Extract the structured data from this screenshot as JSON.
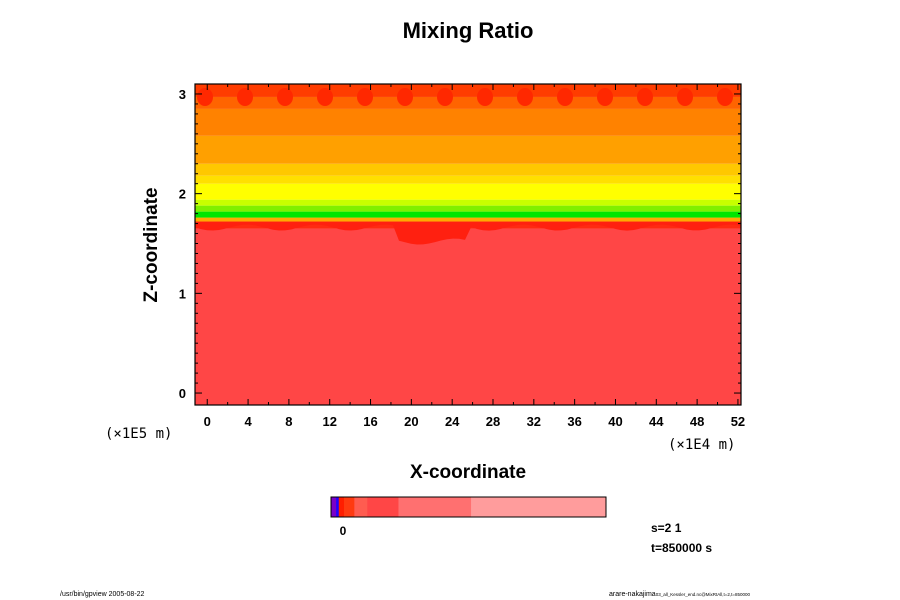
{
  "chart_data": {
    "type": "heatmap",
    "title": "Mixing Ratio",
    "xlabel": "X-coordinate",
    "ylabel": "Z-coordinate",
    "x_unit": "(×1E4 m)",
    "y_unit": "(×1E5 m)",
    "xlim": [
      -1.2,
      52.3
    ],
    "ylim": [
      -0.12,
      3.1
    ],
    "x_ticks": [
      0,
      4,
      8,
      12,
      16,
      20,
      24,
      28,
      32,
      36,
      40,
      44,
      48,
      52
    ],
    "y_ticks": [
      0,
      1,
      2,
      3
    ],
    "bands": [
      {
        "z0": -0.12,
        "z1": 1.65,
        "color": "#ff4646"
      },
      {
        "z0": 1.65,
        "z1": 1.72,
        "color": "#ff2a12"
      },
      {
        "z0": 1.72,
        "z1": 1.76,
        "color": "#ffaa00"
      },
      {
        "z0": 1.76,
        "z1": 1.82,
        "color": "#00e600"
      },
      {
        "z0": 1.82,
        "z1": 1.88,
        "color": "#7ff000"
      },
      {
        "z0": 1.88,
        "z1": 1.94,
        "color": "#c8ff00"
      },
      {
        "z0": 1.94,
        "z1": 2.1,
        "color": "#ffff00"
      },
      {
        "z0": 2.1,
        "z1": 2.18,
        "color": "#ffe000"
      },
      {
        "z0": 2.18,
        "z1": 2.3,
        "color": "#ffc800"
      },
      {
        "z0": 2.3,
        "z1": 2.58,
        "color": "#ffa000"
      },
      {
        "z0": 2.58,
        "z1": 2.85,
        "color": "#ff8200"
      },
      {
        "z0": 2.85,
        "z1": 2.97,
        "color": "#ff6400"
      },
      {
        "z0": 2.97,
        "z1": 3.1,
        "color": "#ff3c00"
      }
    ],
    "colorbar": {
      "tick_label": "0",
      "segments": [
        {
          "color": "#7a00c8",
          "weight": 1
        },
        {
          "color": "#1e00ff",
          "weight": 0.5
        },
        {
          "color": "#ff1e00",
          "weight": 1
        },
        {
          "color": "#ff3a10",
          "weight": 2
        },
        {
          "color": "#ff5c50",
          "weight": 2.5
        },
        {
          "color": "#ff4646",
          "weight": 6
        },
        {
          "color": "#ff7070",
          "weight": 14
        },
        {
          "color": "#ff9c9c",
          "weight": 26
        }
      ]
    },
    "annotations": {
      "s": "s=2 1",
      "t": "t=850000 s"
    }
  },
  "footer": {
    "left": "/usr/bin/gpview 2005-08-22",
    "right_main": "arare-nakajima",
    "right_sub": "03_all_Kessler_end.nc@MixRtAll,t=2,t=850000"
  }
}
